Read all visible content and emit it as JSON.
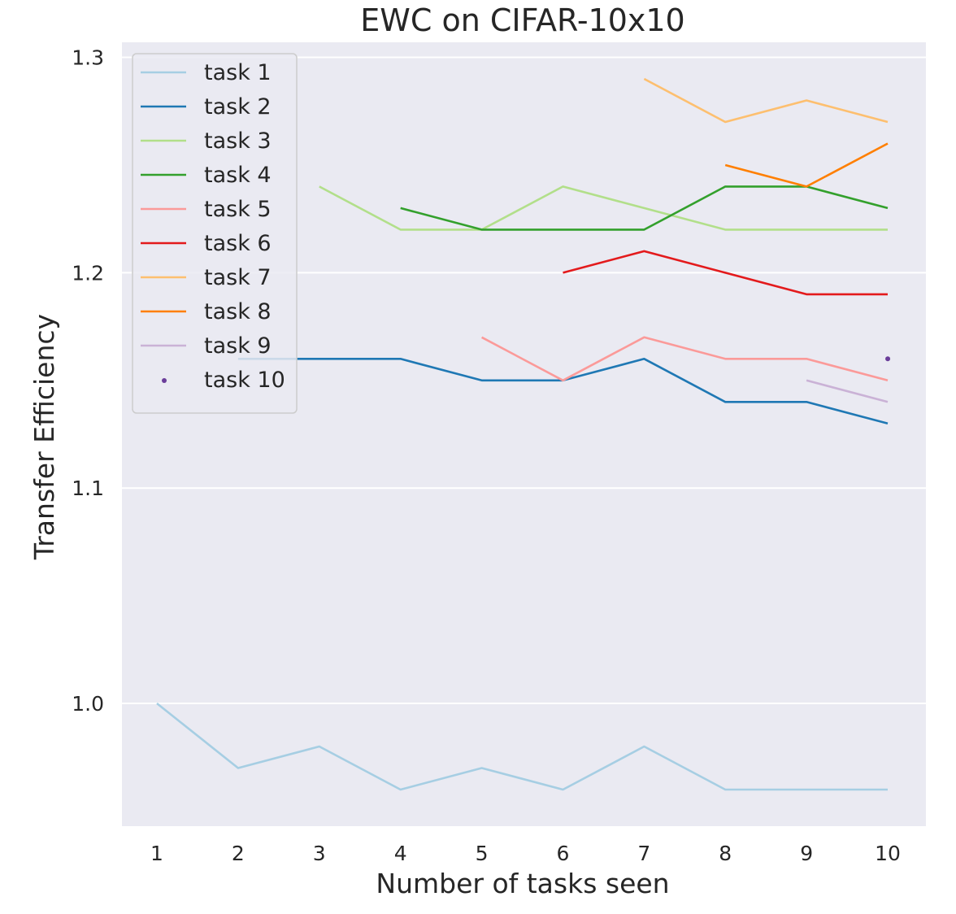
{
  "chart_data": {
    "type": "line",
    "title": "EWC on CIFAR-10x10",
    "xlabel": "Number of tasks seen",
    "ylabel": "Transfer Efficiency",
    "x_ticks": [
      1,
      2,
      3,
      4,
      5,
      6,
      7,
      8,
      9,
      10
    ],
    "y_ticks": [
      1.0,
      1.1,
      1.2,
      1.3
    ],
    "y_tick_labels": [
      "1.0",
      "1.1",
      "1.2",
      "1.3"
    ],
    "xlim": [
      0.57,
      10.47
    ],
    "ylim": [
      0.943,
      1.307
    ],
    "grid": true,
    "legend_position": "upper-left",
    "series": [
      {
        "name": "task 1",
        "color": "#a6cee3",
        "x": [
          1,
          2,
          3,
          4,
          5,
          6,
          7,
          8,
          9,
          10
        ],
        "values": [
          1.0,
          0.97,
          0.98,
          0.96,
          0.97,
          0.96,
          0.98,
          0.96,
          0.96,
          0.96
        ]
      },
      {
        "name": "task 2",
        "color": "#1f78b4",
        "x": [
          2,
          3,
          4,
          5,
          6,
          7,
          8,
          9,
          10
        ],
        "values": [
          1.16,
          1.16,
          1.16,
          1.15,
          1.15,
          1.16,
          1.14,
          1.14,
          1.13
        ]
      },
      {
        "name": "task 3",
        "color": "#b2df8a",
        "x": [
          3,
          4,
          5,
          6,
          7,
          8,
          9,
          10
        ],
        "values": [
          1.24,
          1.22,
          1.22,
          1.24,
          1.23,
          1.22,
          1.22,
          1.22
        ]
      },
      {
        "name": "task 4",
        "color": "#33a02c",
        "x": [
          4,
          5,
          6,
          7,
          8,
          9,
          10
        ],
        "values": [
          1.23,
          1.22,
          1.22,
          1.22,
          1.24,
          1.24,
          1.23
        ]
      },
      {
        "name": "task 5",
        "color": "#fb9a99",
        "x": [
          5,
          6,
          7,
          8,
          9,
          10
        ],
        "values": [
          1.17,
          1.15,
          1.17,
          1.16,
          1.16,
          1.15
        ]
      },
      {
        "name": "task 6",
        "color": "#e31a1c",
        "x": [
          6,
          7,
          8,
          9,
          10
        ],
        "values": [
          1.2,
          1.21,
          1.2,
          1.19,
          1.19
        ]
      },
      {
        "name": "task 7",
        "color": "#fdbf6f",
        "x": [
          7,
          8,
          9,
          10
        ],
        "values": [
          1.29,
          1.27,
          1.28,
          1.27
        ]
      },
      {
        "name": "task 8",
        "color": "#ff7f00",
        "x": [
          8,
          9,
          10
        ],
        "values": [
          1.25,
          1.24,
          1.26
        ]
      },
      {
        "name": "task 9",
        "color": "#cab2d6",
        "x": [
          9,
          10
        ],
        "values": [
          1.15,
          1.14
        ]
      },
      {
        "name": "task 10",
        "color": "#6a3d9a",
        "x": [
          10
        ],
        "values": [
          1.16
        ],
        "marker": "dot"
      }
    ]
  }
}
